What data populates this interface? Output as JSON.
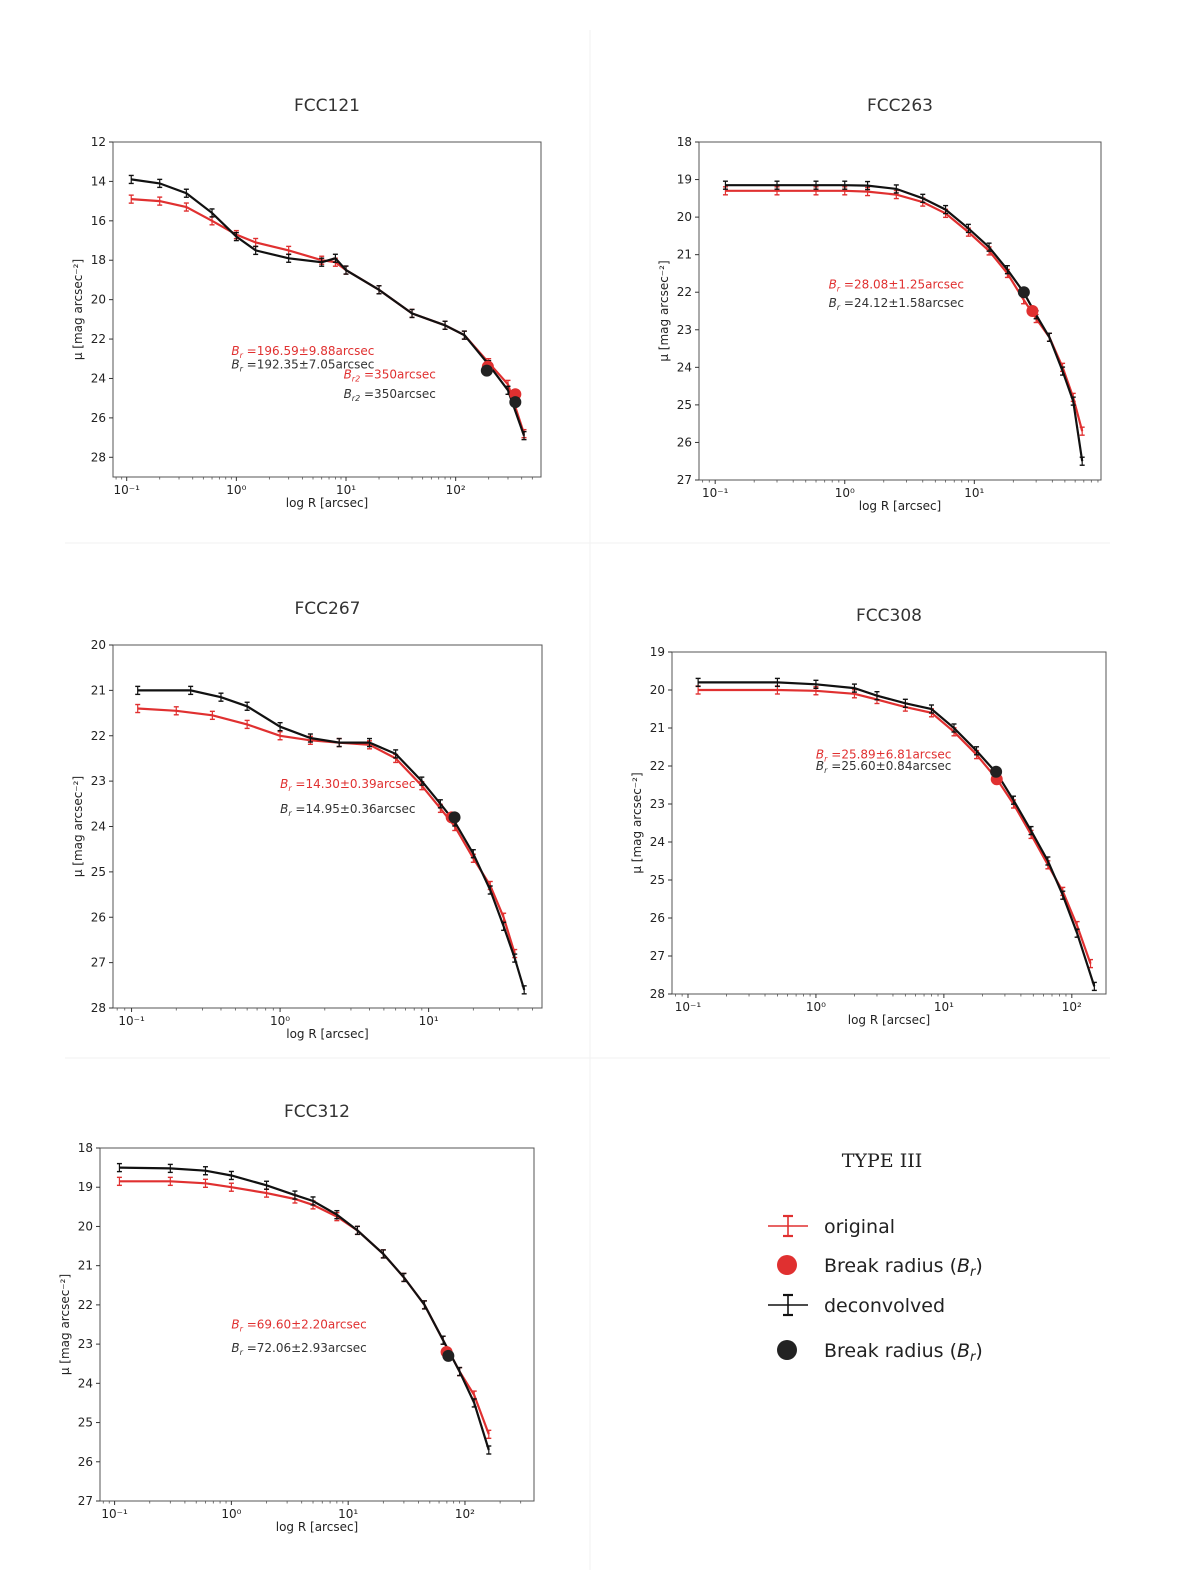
{
  "figure": {
    "legend": {
      "title": "TYPE III",
      "items": [
        {
          "label": "original",
          "kind": "errorbar",
          "color": "#e03030"
        },
        {
          "label": "Break radius",
          "label_math": "B",
          "label_sub": "r",
          "kind": "dot",
          "color": "#e03030"
        },
        {
          "label": "deconvolved",
          "kind": "errorbar",
          "color": "#111111"
        },
        {
          "label": "Break radius",
          "label_math": "B",
          "label_sub": "r",
          "kind": "dot",
          "color": "#222222"
        }
      ]
    },
    "colors": {
      "original": "#e03030",
      "deconvolved": "#111111",
      "break_original": "#e03030",
      "break_deconvolved": "#222222",
      "frame": "#555555"
    }
  },
  "chart_data": [
    {
      "type": "line",
      "title": "FCC121",
      "xlabel": "log R [arcsec]",
      "ylabel": "μ [mag arcsec⁻²]",
      "xscale": "log",
      "xlim": [
        0.075,
        600
      ],
      "ylim": [
        12,
        29
      ],
      "xticks": [
        {
          "v": 0.1,
          "label": "10⁻¹"
        },
        {
          "v": 1,
          "label": "10⁰"
        },
        {
          "v": 10,
          "label": "10¹"
        },
        {
          "v": 100,
          "label": "10²"
        }
      ],
      "yticks": [
        12,
        14,
        16,
        18,
        20,
        22,
        24,
        26,
        28
      ],
      "series": [
        {
          "name": "original",
          "x": [
            0.11,
            0.2,
            0.35,
            0.6,
            1,
            1.5,
            3,
            6,
            8,
            10,
            20,
            40,
            80,
            120,
            200,
            300,
            420
          ],
          "y": [
            14.9,
            15.0,
            15.3,
            16.0,
            16.7,
            17.1,
            17.5,
            18.0,
            18.1,
            18.5,
            19.5,
            20.7,
            21.3,
            21.8,
            23.2,
            24.3,
            26.8
          ]
        },
        {
          "name": "deconvolved",
          "x": [
            0.11,
            0.2,
            0.35,
            0.6,
            1,
            1.5,
            3,
            6,
            8,
            10,
            20,
            40,
            80,
            120,
            200,
            300,
            420
          ],
          "y": [
            13.9,
            14.1,
            14.6,
            15.6,
            16.8,
            17.5,
            17.9,
            18.1,
            17.9,
            18.5,
            19.5,
            20.7,
            21.3,
            21.8,
            23.3,
            24.6,
            26.9
          ]
        }
      ],
      "break_points": [
        {
          "series": "original",
          "x": 196.59,
          "y": 23.4
        },
        {
          "series": "original",
          "x": 350,
          "y": 24.8
        },
        {
          "series": "deconvolved",
          "x": 192.35,
          "y": 23.6
        },
        {
          "series": "deconvolved",
          "x": 350,
          "y": 25.2
        }
      ],
      "annotations": [
        {
          "text": "B",
          "sub": "r",
          "rest": " =196.59±9.88arcsec",
          "color": "original"
        },
        {
          "text": "B",
          "sub": "r",
          "rest": " =192.35±7.05arcsec",
          "color": "deconvolved"
        },
        {
          "text": "B",
          "sub": "r2",
          "rest": " =350arcsec",
          "color": "original"
        },
        {
          "text": "B",
          "sub": "r2",
          "rest": " =350arcsec",
          "color": "deconvolved"
        }
      ]
    },
    {
      "type": "line",
      "title": "FCC263",
      "xlabel": "log R [arcsec]",
      "ylabel": "μ [mag arcsec⁻²]",
      "xscale": "log",
      "xlim": [
        0.075,
        95
      ],
      "ylim": [
        18,
        27
      ],
      "xticks": [
        {
          "v": 0.1,
          "label": "10⁻¹"
        },
        {
          "v": 1,
          "label": "10⁰"
        },
        {
          "v": 10,
          "label": "10¹"
        }
      ],
      "yticks": [
        18,
        19,
        20,
        21,
        22,
        23,
        24,
        25,
        26,
        27
      ],
      "series": [
        {
          "name": "original",
          "x": [
            0.12,
            0.3,
            0.6,
            1,
            1.5,
            2.5,
            4,
            6,
            9,
            13,
            18,
            24,
            30,
            38,
            48,
            58,
            68
          ],
          "y": [
            19.3,
            19.3,
            19.3,
            19.3,
            19.32,
            19.4,
            19.6,
            19.9,
            20.4,
            20.9,
            21.5,
            22.2,
            22.7,
            23.2,
            24.0,
            24.8,
            25.7
          ]
        },
        {
          "name": "deconvolved",
          "x": [
            0.12,
            0.3,
            0.6,
            1,
            1.5,
            2.5,
            4,
            6,
            9,
            13,
            18,
            24,
            30,
            38,
            48,
            58,
            68
          ],
          "y": [
            19.15,
            19.15,
            19.15,
            19.15,
            19.16,
            19.25,
            19.5,
            19.8,
            20.3,
            20.8,
            21.4,
            22.0,
            22.6,
            23.2,
            24.1,
            24.9,
            26.5
          ]
        }
      ],
      "break_points": [
        {
          "series": "original",
          "x": 28.08,
          "y": 22.5
        },
        {
          "series": "deconvolved",
          "x": 24.12,
          "y": 22.0
        }
      ],
      "annotations": [
        {
          "text": "B",
          "sub": "r",
          "rest": " =28.08±1.25arcsec",
          "color": "original"
        },
        {
          "text": "B",
          "sub": "r",
          "rest": " =24.12±1.58arcsec",
          "color": "deconvolved"
        }
      ]
    },
    {
      "type": "line",
      "title": "FCC267",
      "xlabel": "log R [arcsec]",
      "ylabel": "μ [mag arcsec⁻²]",
      "xscale": "log",
      "xlim": [
        0.075,
        58
      ],
      "ylim": [
        20,
        28
      ],
      "xticks": [
        {
          "v": 0.1,
          "label": "10⁻¹"
        },
        {
          "v": 1,
          "label": "10⁰"
        },
        {
          "v": 10,
          "label": "10¹"
        }
      ],
      "yticks": [
        20,
        21,
        22,
        23,
        24,
        25,
        26,
        27,
        28
      ],
      "series": [
        {
          "name": "original",
          "x": [
            0.11,
            0.2,
            0.35,
            0.6,
            1,
            1.6,
            2.5,
            4,
            6,
            9,
            12,
            15,
            20,
            26,
            32,
            38
          ],
          "y": [
            21.4,
            21.45,
            21.55,
            21.75,
            22.0,
            22.1,
            22.15,
            22.2,
            22.5,
            23.1,
            23.6,
            24.0,
            24.7,
            25.3,
            26.0,
            26.8
          ]
        },
        {
          "name": "deconvolved",
          "x": [
            0.11,
            0.25,
            0.4,
            0.6,
            1,
            1.6,
            2.5,
            4,
            6,
            9,
            12,
            15,
            20,
            26,
            32,
            38,
            44
          ],
          "y": [
            21.0,
            21.0,
            21.15,
            21.35,
            21.8,
            22.05,
            22.15,
            22.15,
            22.4,
            23.0,
            23.5,
            23.9,
            24.6,
            25.4,
            26.2,
            26.9,
            27.6
          ]
        }
      ],
      "break_points": [
        {
          "series": "original",
          "x": 14.3,
          "y": 23.8
        },
        {
          "series": "deconvolved",
          "x": 14.95,
          "y": 23.8
        }
      ],
      "annotations": [
        {
          "text": "B",
          "sub": "r",
          "rest": " =14.30±0.39arcsec",
          "color": "original"
        },
        {
          "text": "B",
          "sub": "r",
          "rest": " =14.95±0.36arcsec",
          "color": "deconvolved"
        }
      ]
    },
    {
      "type": "line",
      "title": "FCC308",
      "xlabel": "log R [arcsec]",
      "ylabel": "μ [mag arcsec⁻²]",
      "xscale": "log",
      "xlim": [
        0.075,
        185
      ],
      "ylim": [
        19,
        28
      ],
      "xticks": [
        {
          "v": 0.1,
          "label": "10⁻¹"
        },
        {
          "v": 1,
          "label": "10⁰"
        },
        {
          "v": 10,
          "label": "10¹"
        },
        {
          "v": 100,
          "label": "10²"
        }
      ],
      "yticks": [
        19,
        20,
        21,
        22,
        23,
        24,
        25,
        26,
        27,
        28
      ],
      "series": [
        {
          "name": "original",
          "x": [
            0.12,
            0.5,
            1,
            2,
            3,
            5,
            8,
            12,
            18,
            26,
            35,
            48,
            65,
            85,
            110,
            140
          ],
          "y": [
            20.0,
            20.0,
            20.02,
            20.1,
            20.25,
            20.45,
            20.6,
            21.1,
            21.7,
            22.35,
            23.0,
            23.8,
            24.6,
            25.3,
            26.2,
            27.2
          ]
        },
        {
          "name": "deconvolved",
          "x": [
            0.12,
            0.5,
            1,
            2,
            3,
            5,
            8,
            12,
            18,
            26,
            35,
            48,
            65,
            85,
            110,
            150
          ],
          "y": [
            19.8,
            19.8,
            19.85,
            19.95,
            20.15,
            20.35,
            20.5,
            21.0,
            21.6,
            22.2,
            22.9,
            23.7,
            24.5,
            25.4,
            26.4,
            27.8
          ]
        }
      ],
      "break_points": [
        {
          "series": "original",
          "x": 25.89,
          "y": 22.35
        },
        {
          "series": "deconvolved",
          "x": 25.6,
          "y": 22.15
        }
      ],
      "annotations": [
        {
          "text": "B",
          "sub": "r",
          "rest": " =25.89±6.81arcsec",
          "color": "original"
        },
        {
          "text": "B",
          "sub": "r",
          "rest": " =25.60±0.84arcsec",
          "color": "deconvolved"
        }
      ]
    },
    {
      "type": "line",
      "title": "FCC312",
      "xlabel": "log R [arcsec]",
      "ylabel": "μ [mag arcsec⁻²]",
      "xscale": "log",
      "xlim": [
        0.075,
        390
      ],
      "ylim": [
        18,
        27
      ],
      "xticks": [
        {
          "v": 0.1,
          "label": "10⁻¹"
        },
        {
          "v": 1,
          "label": "10⁰"
        },
        {
          "v": 10,
          "label": "10¹"
        },
        {
          "v": 100,
          "label": "10²"
        }
      ],
      "yticks": [
        18,
        19,
        20,
        21,
        22,
        23,
        24,
        25,
        26,
        27
      ],
      "series": [
        {
          "name": "original",
          "x": [
            0.11,
            0.3,
            0.6,
            1,
            2,
            3.5,
            5,
            8,
            12,
            20,
            30,
            45,
            65,
            90,
            120,
            160
          ],
          "y": [
            18.85,
            18.85,
            18.9,
            19.0,
            19.15,
            19.3,
            19.45,
            19.75,
            20.1,
            20.7,
            21.3,
            22.0,
            22.9,
            23.7,
            24.3,
            25.3
          ]
        },
        {
          "name": "deconvolved",
          "x": [
            0.11,
            0.3,
            0.6,
            1,
            2,
            3.5,
            5,
            8,
            12,
            20,
            30,
            45,
            65,
            90,
            120,
            160
          ],
          "y": [
            18.5,
            18.52,
            18.58,
            18.7,
            18.95,
            19.2,
            19.35,
            19.7,
            20.1,
            20.7,
            21.3,
            22.0,
            22.9,
            23.7,
            24.5,
            25.7
          ]
        }
      ],
      "break_points": [
        {
          "series": "original",
          "x": 69.6,
          "y": 23.2
        },
        {
          "series": "deconvolved",
          "x": 72.06,
          "y": 23.3
        }
      ],
      "annotations": [
        {
          "text": "B",
          "sub": "r",
          "rest": " =69.60±2.20arcsec",
          "color": "original"
        },
        {
          "text": "B",
          "sub": "r",
          "rest": " =72.06±2.93arcsec",
          "color": "deconvolved"
        }
      ]
    }
  ]
}
